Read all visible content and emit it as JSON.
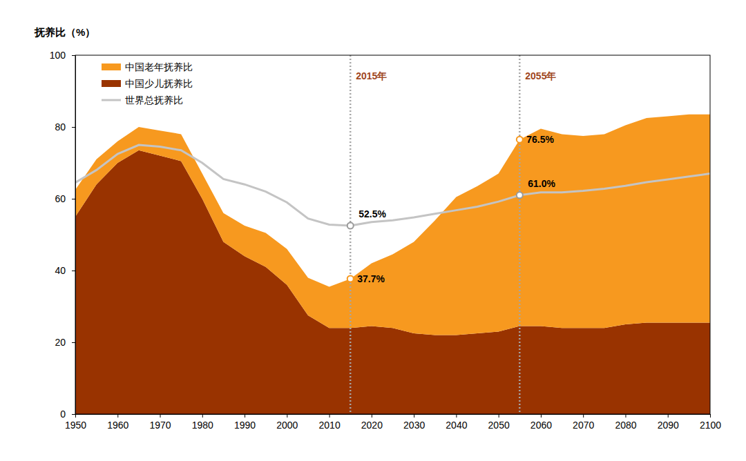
{
  "chart_data": {
    "type": "area",
    "stacked": true,
    "y_label": "抚养比（%）",
    "x": [
      1950,
      1955,
      1960,
      1965,
      1970,
      1975,
      1980,
      1985,
      1990,
      1995,
      2000,
      2005,
      2010,
      2015,
      2020,
      2025,
      2030,
      2035,
      2040,
      2045,
      2050,
      2055,
      2060,
      2065,
      2070,
      2075,
      2080,
      2085,
      2090,
      2095,
      2100
    ],
    "series": [
      {
        "name": "中国老年抚养比",
        "type": "area",
        "color": "#f7991f",
        "values": [
          7.5,
          7,
          6,
          6.5,
          7,
          7.5,
          7,
          8,
          8.5,
          9.5,
          10,
          10.5,
          11.5,
          13.7,
          17.5,
          20.5,
          25.5,
          32,
          38.5,
          41,
          44,
          52,
          55,
          54,
          53.5,
          54,
          55.5,
          57,
          57.5,
          58,
          58
        ]
      },
      {
        "name": "中国少儿抚养比",
        "type": "area",
        "color": "#993300",
        "values": [
          55,
          64,
          70,
          73.5,
          72,
          70.5,
          60,
          48,
          44,
          41,
          36,
          27.5,
          24,
          24,
          24.5,
          24,
          22.5,
          22,
          22,
          22.5,
          23,
          24.5,
          24.5,
          24,
          24,
          24,
          25,
          25.5,
          25.5,
          25.5,
          25.5
        ]
      },
      {
        "name": "世界总抚养比",
        "type": "line",
        "color": "#c4c4c4",
        "values": [
          64.5,
          68,
          72.5,
          75,
          74.5,
          73.5,
          70,
          65.5,
          64,
          62,
          59,
          54.5,
          52.8,
          52.5,
          53.5,
          54,
          54.8,
          55.8,
          56.8,
          57.8,
          59.2,
          61,
          61.8,
          61.8,
          62.2,
          62.8,
          63.6,
          64.6,
          65.4,
          66.2,
          67
        ]
      }
    ],
    "xlim": [
      1950,
      2100
    ],
    "xticks": [
      1950,
      1960,
      1970,
      1980,
      1990,
      2000,
      2010,
      2020,
      2030,
      2040,
      2050,
      2060,
      2070,
      2080,
      2090,
      2100
    ],
    "ylim": [
      0,
      100
    ],
    "yticks": [
      0,
      20,
      40,
      60,
      80,
      100
    ],
    "grid": false,
    "legend": "top-left",
    "annotations": [
      {
        "type": "vline",
        "x": 2015,
        "label": "2015年",
        "color": "#a0461e"
      },
      {
        "type": "vline",
        "x": 2055,
        "label": "2055年",
        "color": "#a0461e"
      },
      {
        "type": "point",
        "x": 2015,
        "y": 52.5,
        "label": "52.5%",
        "color": "#9a9a9a"
      },
      {
        "type": "point",
        "x": 2015,
        "y": 37.7,
        "label": "37.7%",
        "color": "#f7991f"
      },
      {
        "type": "point",
        "x": 2055,
        "y": 76.5,
        "label": "76.5%",
        "color": "#f7991f"
      },
      {
        "type": "point",
        "x": 2055,
        "y": 61.0,
        "label": "61.0%",
        "color": "#9a9a9a"
      }
    ]
  }
}
